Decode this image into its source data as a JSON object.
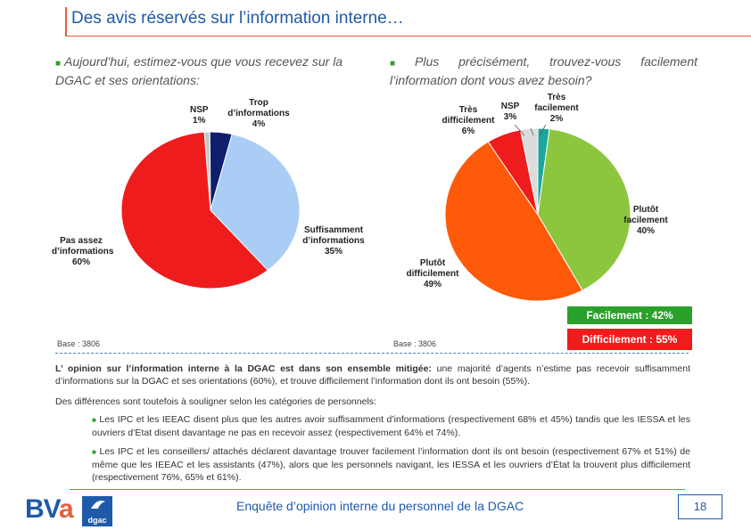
{
  "title": "Des avis réservés sur l’information interne…",
  "left": {
    "question": "Aujourd’hui, estimez-vous que vous recevez sur la DGAC et ses orientations:",
    "base": "Base : 3806",
    "slices": [
      {
        "label_line1": "NSP",
        "label_line2": "1%",
        "value": 1,
        "color": "#c8c8c8"
      },
      {
        "label_line1": "Trop d’informations",
        "label_line2": "4%",
        "value": 4,
        "color": "#0f1f6e"
      },
      {
        "label_line1": "Suffisamment d’informations",
        "label_line2": "35%",
        "value": 35,
        "color": "#a9cdf5"
      },
      {
        "label_line1": "Pas assez d’informations",
        "label_line2": "60%",
        "value": 60,
        "color": "#ee1c1c"
      }
    ]
  },
  "right": {
    "question": "Plus précisément, trouvez-vous facilement l’information dont vous avez besoin?",
    "base": "Base : 3806",
    "slices": [
      {
        "label_line1": "Très facilement",
        "label_line2": "2%",
        "value": 2,
        "color": "#1aa89a"
      },
      {
        "label_line1": "Plutôt facilement",
        "label_line2": "40%",
        "value": 40,
        "color": "#8cc63f"
      },
      {
        "label_line1": "Plutôt difficilement",
        "label_line2": "49%",
        "value": 49,
        "color": "#ff5a0a"
      },
      {
        "label_line1": "Très difficilement",
        "label_line2": "6%",
        "value": 6,
        "color": "#ee1c1c"
      },
      {
        "label_line1": "NSP",
        "label_line2": "3%",
        "value": 3,
        "color": "#dcdcdc"
      }
    ],
    "badge_facile": "Facilement : 42%",
    "badge_difficile": "Difficilement : 55%",
    "color_facile": "#2aa12a",
    "color_difficile": "#ee1c1c"
  },
  "summary": {
    "lead_bold": "L’ opinion sur l’information interne à la DGAC est dans son ensemble mitigée:",
    "lead_rest": " une majorité d’agents n’estime pas recevoir suffisamment d’informations sur la DGAC et ses orientations (60%), et trouve difficilement l’information dont ils ont besoin (55%).",
    "differences": "Des différences sont toutefois à souligner selon les catégories de personnels:",
    "bullet1": "Les IPC et les IEEAC disent plus que les autres avoir suffisamment d’informations (respectivement 68% et 45%) tandis que les IESSA et les ouvriers d’Etat disent davantage ne pas en recevoir assez (respectivement 64% et 74%).",
    "bullet2": "Les IPC et les conseillers/ attachés déclarent davantage trouver facilement l’information dont ils ont besoin (respectivement 67% et 51%) de même que les IEEAC et les assistants (47%), alors que les personnels navigant, les IESSA et les ouvriers d’État la trouvent plus difficilement (respectivement 76%, 65% et 61%)."
  },
  "footer": {
    "text": "Enquête d’opinion interne du personnel de la DGAC",
    "page": "18",
    "logo_bva_b": "B",
    "logo_bva_v": "V",
    "logo_bva_a": "a",
    "logo_dgac": "dgac"
  },
  "chart_data": [
    {
      "type": "pie",
      "title": "Aujourd’hui, estimez-vous que vous recevez sur la DGAC et ses orientations:",
      "categories": [
        "NSP",
        "Trop d’informations",
        "Suffisamment d’informations",
        "Pas assez d’informations"
      ],
      "values": [
        1,
        4,
        35,
        60
      ]
    },
    {
      "type": "pie",
      "title": "Plus précisément, trouvez-vous facilement l’information dont vous avez besoin?",
      "categories": [
        "Très facilement",
        "Plutôt facilement",
        "Plutôt difficilement",
        "Très difficilement",
        "NSP"
      ],
      "values": [
        2,
        40,
        49,
        6,
        3
      ]
    }
  ]
}
